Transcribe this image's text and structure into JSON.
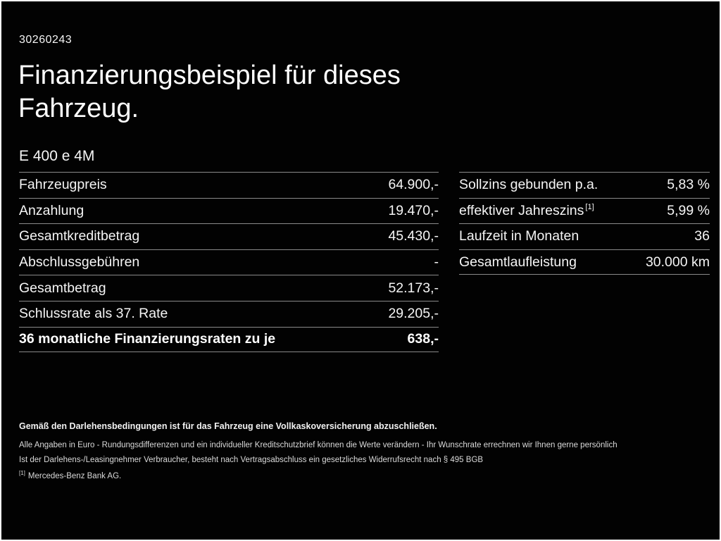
{
  "page": {
    "background": "#020202",
    "text_color": "#ffffff",
    "divider_color": "#8a8a8a",
    "id_number": "30260243",
    "title_line1": "Finanzierungsbeispiel für dieses",
    "title_line2": "Fahrzeug.",
    "model": "E 400 e 4M"
  },
  "financing_table": {
    "rows": [
      {
        "label": "Fahrzeugpreis",
        "value": "64.900,-"
      },
      {
        "label": "Anzahlung",
        "value": "19.470,-"
      },
      {
        "label": "Gesamtkreditbetrag",
        "value": "45.430,-"
      },
      {
        "label": "Abschlussgebühren",
        "value": "-"
      },
      {
        "label": "Gesamtbetrag",
        "value": "52.173,-"
      },
      {
        "label": "Schlussrate als 37. Rate",
        "value": "29.205,-"
      },
      {
        "label": "36 monatliche Finanzierungsraten zu je",
        "value": "638,-"
      }
    ]
  },
  "conditions_table": {
    "rows": [
      {
        "label": "Sollzins gebunden p.a.",
        "sup": "",
        "value": "5,83 %"
      },
      {
        "label": "effektiver Jahreszins",
        "sup": "[1]",
        "value": "5,99 %"
      },
      {
        "label": "Laufzeit in Monaten",
        "sup": "",
        "value": "36"
      },
      {
        "label": "Gesamtlaufleistung",
        "sup": "",
        "value": "30.000 km"
      }
    ]
  },
  "footnotes": {
    "insurance_note": "Gemäß den Darlehensbedingungen ist für das Fahrzeug eine Vollkaskoversicherung abzuschließen.",
    "disclaimer_line1": "Alle Angaben in Euro - Rundungsdifferenzen und ein individueller Kreditschutzbrief können die Werte verändern - Ihr Wunschrate errechnen wir Ihnen gerne persönlich",
    "disclaimer_line2": "Ist der Darlehens-/Leasingnehmer Verbraucher, besteht nach Vertragsabschluss ein gesetzliches Widerrufsrecht nach § 495 BGB",
    "reference_marker": "[1]",
    "reference_text": "Mercedes-Benz Bank AG."
  }
}
